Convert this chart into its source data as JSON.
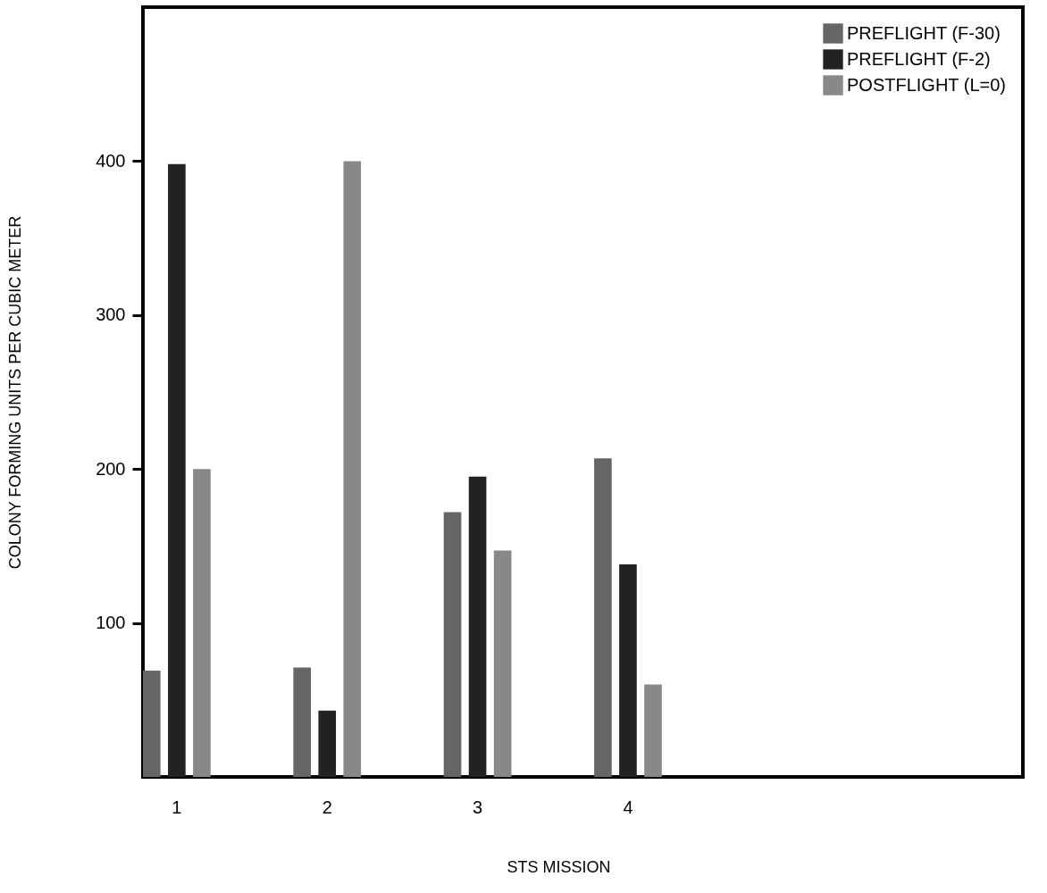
{
  "chart_data": {
    "type": "bar",
    "xlabel": "STS MISSION",
    "ylabel": "COLONY FORMING UNITS PER CUBIC METER",
    "categories": [
      "1",
      "2",
      "3",
      "4",
      null,
      null
    ],
    "series": [
      {
        "name": "PREFLIGHT (F-30)",
        "color": "#666666",
        "values": [
          69,
          71,
          172,
          207,
          null,
          null
        ]
      },
      {
        "name": "PREFLIGHT (F-2)",
        "color": "#222222",
        "values": [
          398,
          43,
          195,
          138,
          null,
          null
        ]
      },
      {
        "name": "POSTFLIGHT (L=0)",
        "color": "#888888",
        "values": [
          200,
          400,
          147,
          60,
          null,
          null
        ]
      }
    ],
    "ylim": [
      0,
      500
    ],
    "yticks": [
      100,
      200,
      300,
      400
    ],
    "grid": false,
    "legend": "top right"
  }
}
